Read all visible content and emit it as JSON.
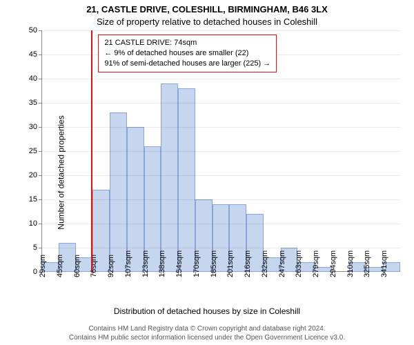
{
  "title_line1": "21, CASTLE DRIVE, COLESHILL, BIRMINGHAM, B46 3LX",
  "title_line2": "Size of property relative to detached houses in Coleshill",
  "ylabel": "Number of detached properties",
  "xlabel": "Distribution of detached houses by size in Coleshill",
  "footer_line1": "Contains HM Land Registry data © Crown copyright and database right 2024.",
  "footer_line2": "Contains HM public sector information licensed under the Open Government Licence v3.0.",
  "chart": {
    "type": "histogram",
    "ylim": [
      0,
      50
    ],
    "ytick_step": 5,
    "background_color": "#ffffff",
    "grid_color": "#e8e8e8",
    "axis_color": "#888888",
    "bar_fill": "#c7d6ef",
    "bar_border": "#8aa4d6",
    "marker_color": "#e01010",
    "tick_fontsize": 11,
    "label_fontsize": 12,
    "title_fontsize": 13,
    "marker_value": 74,
    "x_start": 29,
    "x_step_label": 15.4,
    "categories": [
      "29sqm",
      "45sqm",
      "60sqm",
      "76sqm",
      "92sqm",
      "107sqm",
      "123sqm",
      "138sqm",
      "154sqm",
      "170sqm",
      "185sqm",
      "201sqm",
      "216sqm",
      "232sqm",
      "247sqm",
      "263sqm",
      "279sqm",
      "294sqm",
      "310sqm",
      "325sqm",
      "341sqm"
    ],
    "values": [
      2,
      6,
      3,
      17,
      33,
      30,
      26,
      39,
      38,
      15,
      14,
      14,
      12,
      3,
      5,
      2,
      1,
      0,
      2,
      1,
      2
    ],
    "annotation": {
      "border_color": "#e01010",
      "lines": [
        "21 CASTLE DRIVE: 74sqm",
        "← 9% of detached houses are smaller (22)",
        "91% of semi-detached houses are larger (225) →"
      ]
    }
  }
}
